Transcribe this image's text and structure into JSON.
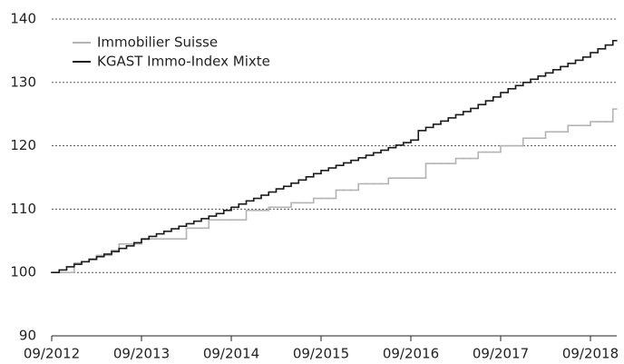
{
  "chart_data": {
    "type": "line",
    "step": true,
    "legend": "top-left",
    "grid": true,
    "x": [
      "09/2012",
      "10/2012",
      "11/2012",
      "12/2012",
      "01/2013",
      "02/2013",
      "03/2013",
      "04/2013",
      "05/2013",
      "06/2013",
      "07/2013",
      "08/2013",
      "09/2013",
      "10/2013",
      "11/2013",
      "12/2013",
      "01/2014",
      "02/2014",
      "03/2014",
      "04/2014",
      "05/2014",
      "06/2014",
      "07/2014",
      "08/2014",
      "09/2014",
      "10/2014",
      "11/2014",
      "12/2014",
      "01/2015",
      "02/2015",
      "03/2015",
      "04/2015",
      "05/2015",
      "06/2015",
      "07/2015",
      "08/2015",
      "09/2015",
      "10/2015",
      "11/2015",
      "12/2015",
      "01/2016",
      "02/2016",
      "03/2016",
      "04/2016",
      "05/2016",
      "06/2016",
      "07/2016",
      "08/2016",
      "09/2016",
      "10/2016",
      "11/2016",
      "12/2016",
      "01/2017",
      "02/2017",
      "03/2017",
      "04/2017",
      "05/2017",
      "06/2017",
      "07/2017",
      "08/2017",
      "09/2017",
      "10/2017",
      "11/2017",
      "12/2017",
      "01/2018",
      "02/2018",
      "03/2018",
      "04/2018",
      "05/2018",
      "06/2018",
      "07/2018",
      "08/2018",
      "09/2018",
      "10/2018",
      "11/2018",
      "12/2018"
    ],
    "xticks": [
      "09/2012",
      "09/2013",
      "09/2014",
      "09/2015",
      "09/2016",
      "09/2017",
      "09/2018"
    ],
    "ylim": [
      90,
      140
    ],
    "yticks": [
      90,
      100,
      110,
      120,
      130,
      140
    ],
    "series": [
      {
        "name": "Immobilier Suisse",
        "color": "#b3b3b3",
        "values": [
          100.0,
          100.0,
          100.0,
          101.5,
          101.7,
          102.0,
          102.7,
          102.7,
          103.5,
          104.5,
          104.5,
          104.5,
          105.2,
          105.3,
          105.3,
          105.3,
          105.3,
          105.3,
          107.0,
          107.0,
          107.0,
          108.3,
          108.3,
          108.3,
          108.3,
          108.3,
          109.8,
          109.8,
          109.8,
          110.3,
          110.3,
          110.3,
          111.0,
          111.0,
          111.0,
          111.7,
          111.7,
          111.7,
          113.0,
          113.0,
          113.0,
          114.0,
          114.0,
          114.0,
          114.0,
          114.9,
          114.9,
          114.9,
          114.9,
          114.9,
          117.2,
          117.2,
          117.2,
          117.2,
          118.0,
          118.0,
          118.0,
          119.0,
          119.0,
          119.0,
          120.0,
          120.0,
          120.0,
          121.2,
          121.2,
          121.2,
          122.2,
          122.2,
          122.2,
          123.2,
          123.2,
          123.2,
          123.8,
          123.8,
          123.8,
          125.8
        ]
      },
      {
        "name": "KGAST Immo-Index Mixte",
        "color": "#1a1a1a",
        "values": [
          100.0,
          100.4,
          100.9,
          101.3,
          101.7,
          102.1,
          102.5,
          102.9,
          103.3,
          103.8,
          104.2,
          104.7,
          105.3,
          105.7,
          106.1,
          106.5,
          106.9,
          107.3,
          107.7,
          108.1,
          108.5,
          108.9,
          109.3,
          109.8,
          110.3,
          110.8,
          111.3,
          111.7,
          112.2,
          112.7,
          113.2,
          113.6,
          114.1,
          114.6,
          115.1,
          115.6,
          116.1,
          116.5,
          116.9,
          117.3,
          117.7,
          118.1,
          118.5,
          118.9,
          119.3,
          119.7,
          120.1,
          120.5,
          120.9,
          122.4,
          122.9,
          123.4,
          123.9,
          124.4,
          124.9,
          125.4,
          125.9,
          126.5,
          127.1,
          127.7,
          128.4,
          129.0,
          129.5,
          130.0,
          130.5,
          131.0,
          131.5,
          132.0,
          132.5,
          133.0,
          133.5,
          134.0,
          134.7,
          135.3,
          135.9,
          136.6
        ]
      }
    ]
  }
}
